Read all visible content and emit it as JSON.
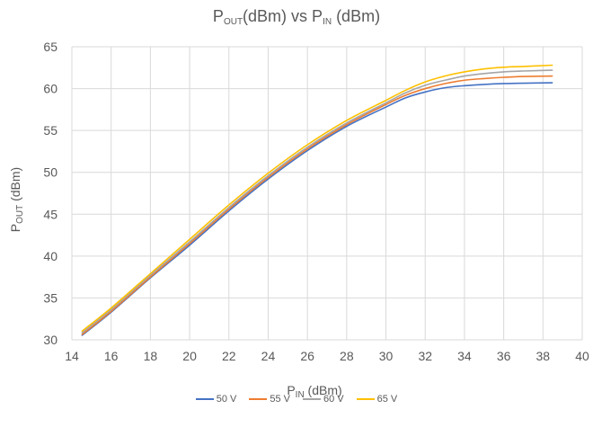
{
  "chart_data": {
    "type": "line",
    "title": {
      "main": "P",
      "sub1": "OUT",
      "mid": "(dBm) vs P",
      "sub2": "IN",
      "end": " (dBm)"
    },
    "xlabel": {
      "main": "P",
      "sub": "IN",
      "end": " (dBm)"
    },
    "ylabel": {
      "main": "P",
      "sub": "OUT",
      "end": " (dBm)"
    },
    "xlim": [
      14,
      40
    ],
    "ylim": [
      30,
      65
    ],
    "xticks": [
      14,
      16,
      18,
      20,
      22,
      24,
      26,
      28,
      30,
      32,
      34,
      36,
      38,
      40
    ],
    "yticks": [
      30,
      35,
      40,
      45,
      50,
      55,
      60,
      65
    ],
    "grid": true,
    "legend_position": "bottom",
    "series": [
      {
        "name": "50 V",
        "color": "#4472C4",
        "x": [
          14.5,
          16,
          18,
          20,
          22,
          24,
          26,
          28,
          30,
          31,
          32,
          33,
          34,
          35,
          36,
          37,
          38.5
        ],
        "y": [
          30.5,
          33.3,
          37.4,
          41.3,
          45.4,
          49.2,
          52.6,
          55.5,
          57.8,
          58.9,
          59.6,
          60.1,
          60.35,
          60.5,
          60.6,
          60.65,
          60.7
        ]
      },
      {
        "name": "55 V",
        "color": "#ED7D31",
        "x": [
          14.5,
          16,
          18,
          20,
          22,
          24,
          26,
          28,
          30,
          31,
          32,
          33,
          34,
          35,
          36,
          37,
          38.5
        ],
        "y": [
          30.6,
          33.4,
          37.5,
          41.5,
          45.6,
          49.4,
          52.8,
          55.7,
          58.1,
          59.2,
          60.0,
          60.6,
          61.0,
          61.2,
          61.35,
          61.45,
          61.5
        ]
      },
      {
        "name": "60 V",
        "color": "#A5A5A5",
        "x": [
          14.5,
          16,
          18,
          20,
          22,
          24,
          26,
          28,
          30,
          31,
          32,
          33,
          34,
          35,
          36,
          37,
          38.5
        ],
        "y": [
          30.8,
          33.6,
          37.7,
          41.7,
          45.8,
          49.6,
          53.0,
          55.9,
          58.3,
          59.5,
          60.4,
          61.0,
          61.5,
          61.8,
          62.0,
          62.1,
          62.2
        ]
      },
      {
        "name": "65 V",
        "color": "#FFC000",
        "x": [
          14.5,
          16,
          18,
          20,
          22,
          24,
          26,
          28,
          30,
          31,
          32,
          33,
          34,
          35,
          36,
          37,
          38.5
        ],
        "y": [
          31.0,
          33.8,
          37.9,
          42.0,
          46.1,
          49.9,
          53.3,
          56.2,
          58.6,
          59.8,
          60.8,
          61.5,
          62.0,
          62.35,
          62.55,
          62.65,
          62.8
        ]
      }
    ]
  }
}
